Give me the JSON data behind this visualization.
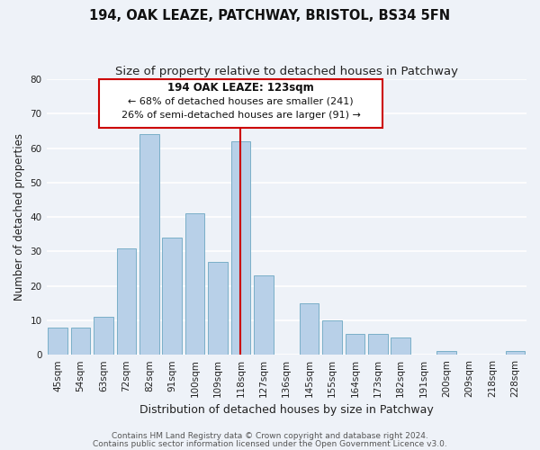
{
  "title": "194, OAK LEAZE, PATCHWAY, BRISTOL, BS34 5FN",
  "subtitle": "Size of property relative to detached houses in Patchway",
  "xlabel": "Distribution of detached houses by size in Patchway",
  "ylabel": "Number of detached properties",
  "categories": [
    "45sqm",
    "54sqm",
    "63sqm",
    "72sqm",
    "82sqm",
    "91sqm",
    "100sqm",
    "109sqm",
    "118sqm",
    "127sqm",
    "136sqm",
    "145sqm",
    "155sqm",
    "164sqm",
    "173sqm",
    "182sqm",
    "191sqm",
    "200sqm",
    "209sqm",
    "218sqm",
    "228sqm"
  ],
  "values": [
    8,
    8,
    11,
    31,
    64,
    34,
    41,
    27,
    62,
    23,
    0,
    15,
    10,
    6,
    6,
    5,
    0,
    1,
    0,
    0,
    1
  ],
  "bar_color": "#b8d0e8",
  "bar_edge_color": "#7aafc8",
  "highlight_line_color": "#cc0000",
  "highlight_bar_index": 8,
  "annotation_title": "194 OAK LEAZE: 123sqm",
  "annotation_line1": "← 68% of detached houses are smaller (241)",
  "annotation_line2": "26% of semi-detached houses are larger (91) →",
  "annotation_box_color": "#ffffff",
  "annotation_box_edge": "#cc0000",
  "ylim": [
    0,
    80
  ],
  "yticks": [
    0,
    10,
    20,
    30,
    40,
    50,
    60,
    70,
    80
  ],
  "footer1": "Contains HM Land Registry data © Crown copyright and database right 2024.",
  "footer2": "Contains public sector information licensed under the Open Government Licence v3.0.",
  "background_color": "#eef2f8",
  "grid_color": "#ffffff",
  "title_fontsize": 10.5,
  "subtitle_fontsize": 9.5,
  "tick_fontsize": 7.5,
  "ylabel_fontsize": 8.5,
  "xlabel_fontsize": 9,
  "footer_fontsize": 6.5
}
